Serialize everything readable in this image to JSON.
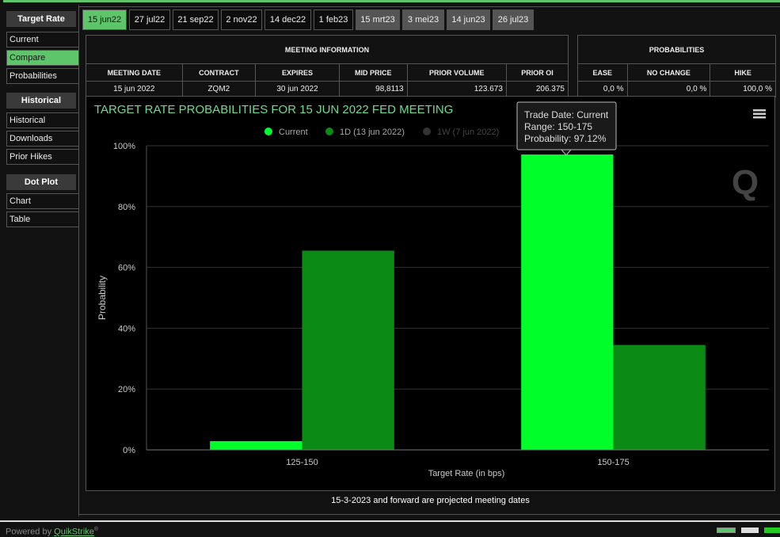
{
  "sidebar": [
    {
      "title": "Target Rate",
      "items": [
        "Current",
        "Compare",
        "Probabilities"
      ]
    },
    {
      "title": "Historical",
      "items": [
        "Historical",
        "Downloads",
        "Prior Hikes"
      ]
    },
    {
      "title": "Dot Plot",
      "items": [
        "Chart",
        "Table"
      ]
    }
  ],
  "tabs": [
    "15 jun22",
    "27 jul22",
    "21 sep22",
    "2 nov22",
    "14 dec22",
    "1 feb23",
    "15 mrt23",
    "3 mei23",
    "14 jun23",
    "26 jul23"
  ],
  "meeting_table": {
    "title": "MEETING INFORMATION",
    "headers": [
      "MEETING DATE",
      "CONTRACT",
      "EXPIRES",
      "MID PRICE",
      "PRIOR VOLUME",
      "PRIOR OI"
    ],
    "row": [
      "15 jun 2022",
      "ZQM2",
      "30 jun 2022",
      "98,8113",
      "123.673",
      "206.375"
    ]
  },
  "prob_table": {
    "title": "PROBABILITIES",
    "headers": [
      "EASE",
      "NO CHANGE",
      "HIKE"
    ],
    "row": [
      "0,0 %",
      "0,0 %",
      "100,0 %"
    ]
  },
  "chart_data": {
    "type": "bar",
    "title": "TARGET RATE PROBABILITIES FOR 15 JUN 2022 FED MEETING",
    "x_label": "Target Rate (in bps)",
    "y_label": "Probability",
    "categories": [
      "125-150",
      "150-175"
    ],
    "series": [
      {
        "name": "Current",
        "color": "#00ff2a",
        "values": [
          2.88,
          97.12
        ],
        "visible": true
      },
      {
        "name": "1D (13 jun 2022)",
        "color": "#0b8a16",
        "values": [
          65.5,
          34.5
        ],
        "visible": true
      },
      {
        "name": "1W (7 jun 2022)",
        "color": "#333333",
        "values": [
          null,
          null
        ],
        "visible": false
      }
    ],
    "ylim": [
      0,
      100
    ],
    "yticks": [
      {
        "value": 0,
        "label": "0%"
      },
      {
        "value": 20,
        "label": "20%"
      },
      {
        "value": 40,
        "label": "40%"
      },
      {
        "value": 60,
        "label": "60%"
      },
      {
        "value": 80,
        "label": "80%"
      },
      {
        "value": 100,
        "label": "100%"
      }
    ],
    "grid": true,
    "tooltip": [
      "Trade Date: Current",
      "Range: 150-175",
      "Probability: 97.12%"
    ]
  },
  "footer_note": "15-3-2023 and forward are projected meeting dates",
  "powered_by": "Powered by",
  "brand": "QuikStrike",
  "brand_mark": "®"
}
